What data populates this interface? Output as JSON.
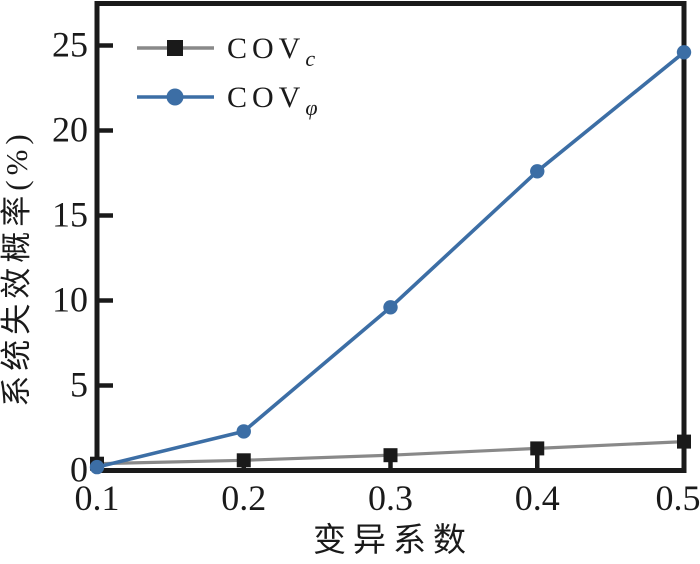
{
  "figure": {
    "background": "#ffffff",
    "frame_color": "#1a1a1a"
  },
  "chart_data": {
    "type": "line",
    "title": "",
    "xlabel": "变异系数",
    "ylabel": "系统失效概率(%)",
    "x": [
      0.1,
      0.2,
      0.3,
      0.4,
      0.5
    ],
    "series": [
      {
        "name": "COV_c",
        "label_base": "COV",
        "label_sub": "c",
        "values": [
          0.4,
          0.6,
          0.9,
          1.3,
          1.7
        ],
        "line_color": "#898989",
        "marker": "square",
        "marker_color": "#1a1a1a"
      },
      {
        "name": "COV_phi",
        "label_base": "COV",
        "label_sub": "φ",
        "values": [
          0.2,
          2.3,
          9.6,
          17.6,
          24.6
        ],
        "line_color": "#3c6ea5",
        "marker": "circle",
        "marker_color": "#3c6ea5"
      }
    ],
    "xlim": [
      0.1,
      0.5
    ],
    "ylim": [
      0,
      27.5
    ],
    "xticks": [
      "0.1",
      "0.2",
      "0.3",
      "0.4",
      "0.5"
    ],
    "yticks": [
      "0",
      "5",
      "10",
      "15",
      "20",
      "25"
    ],
    "grid": false,
    "legend_position": "top-left"
  }
}
